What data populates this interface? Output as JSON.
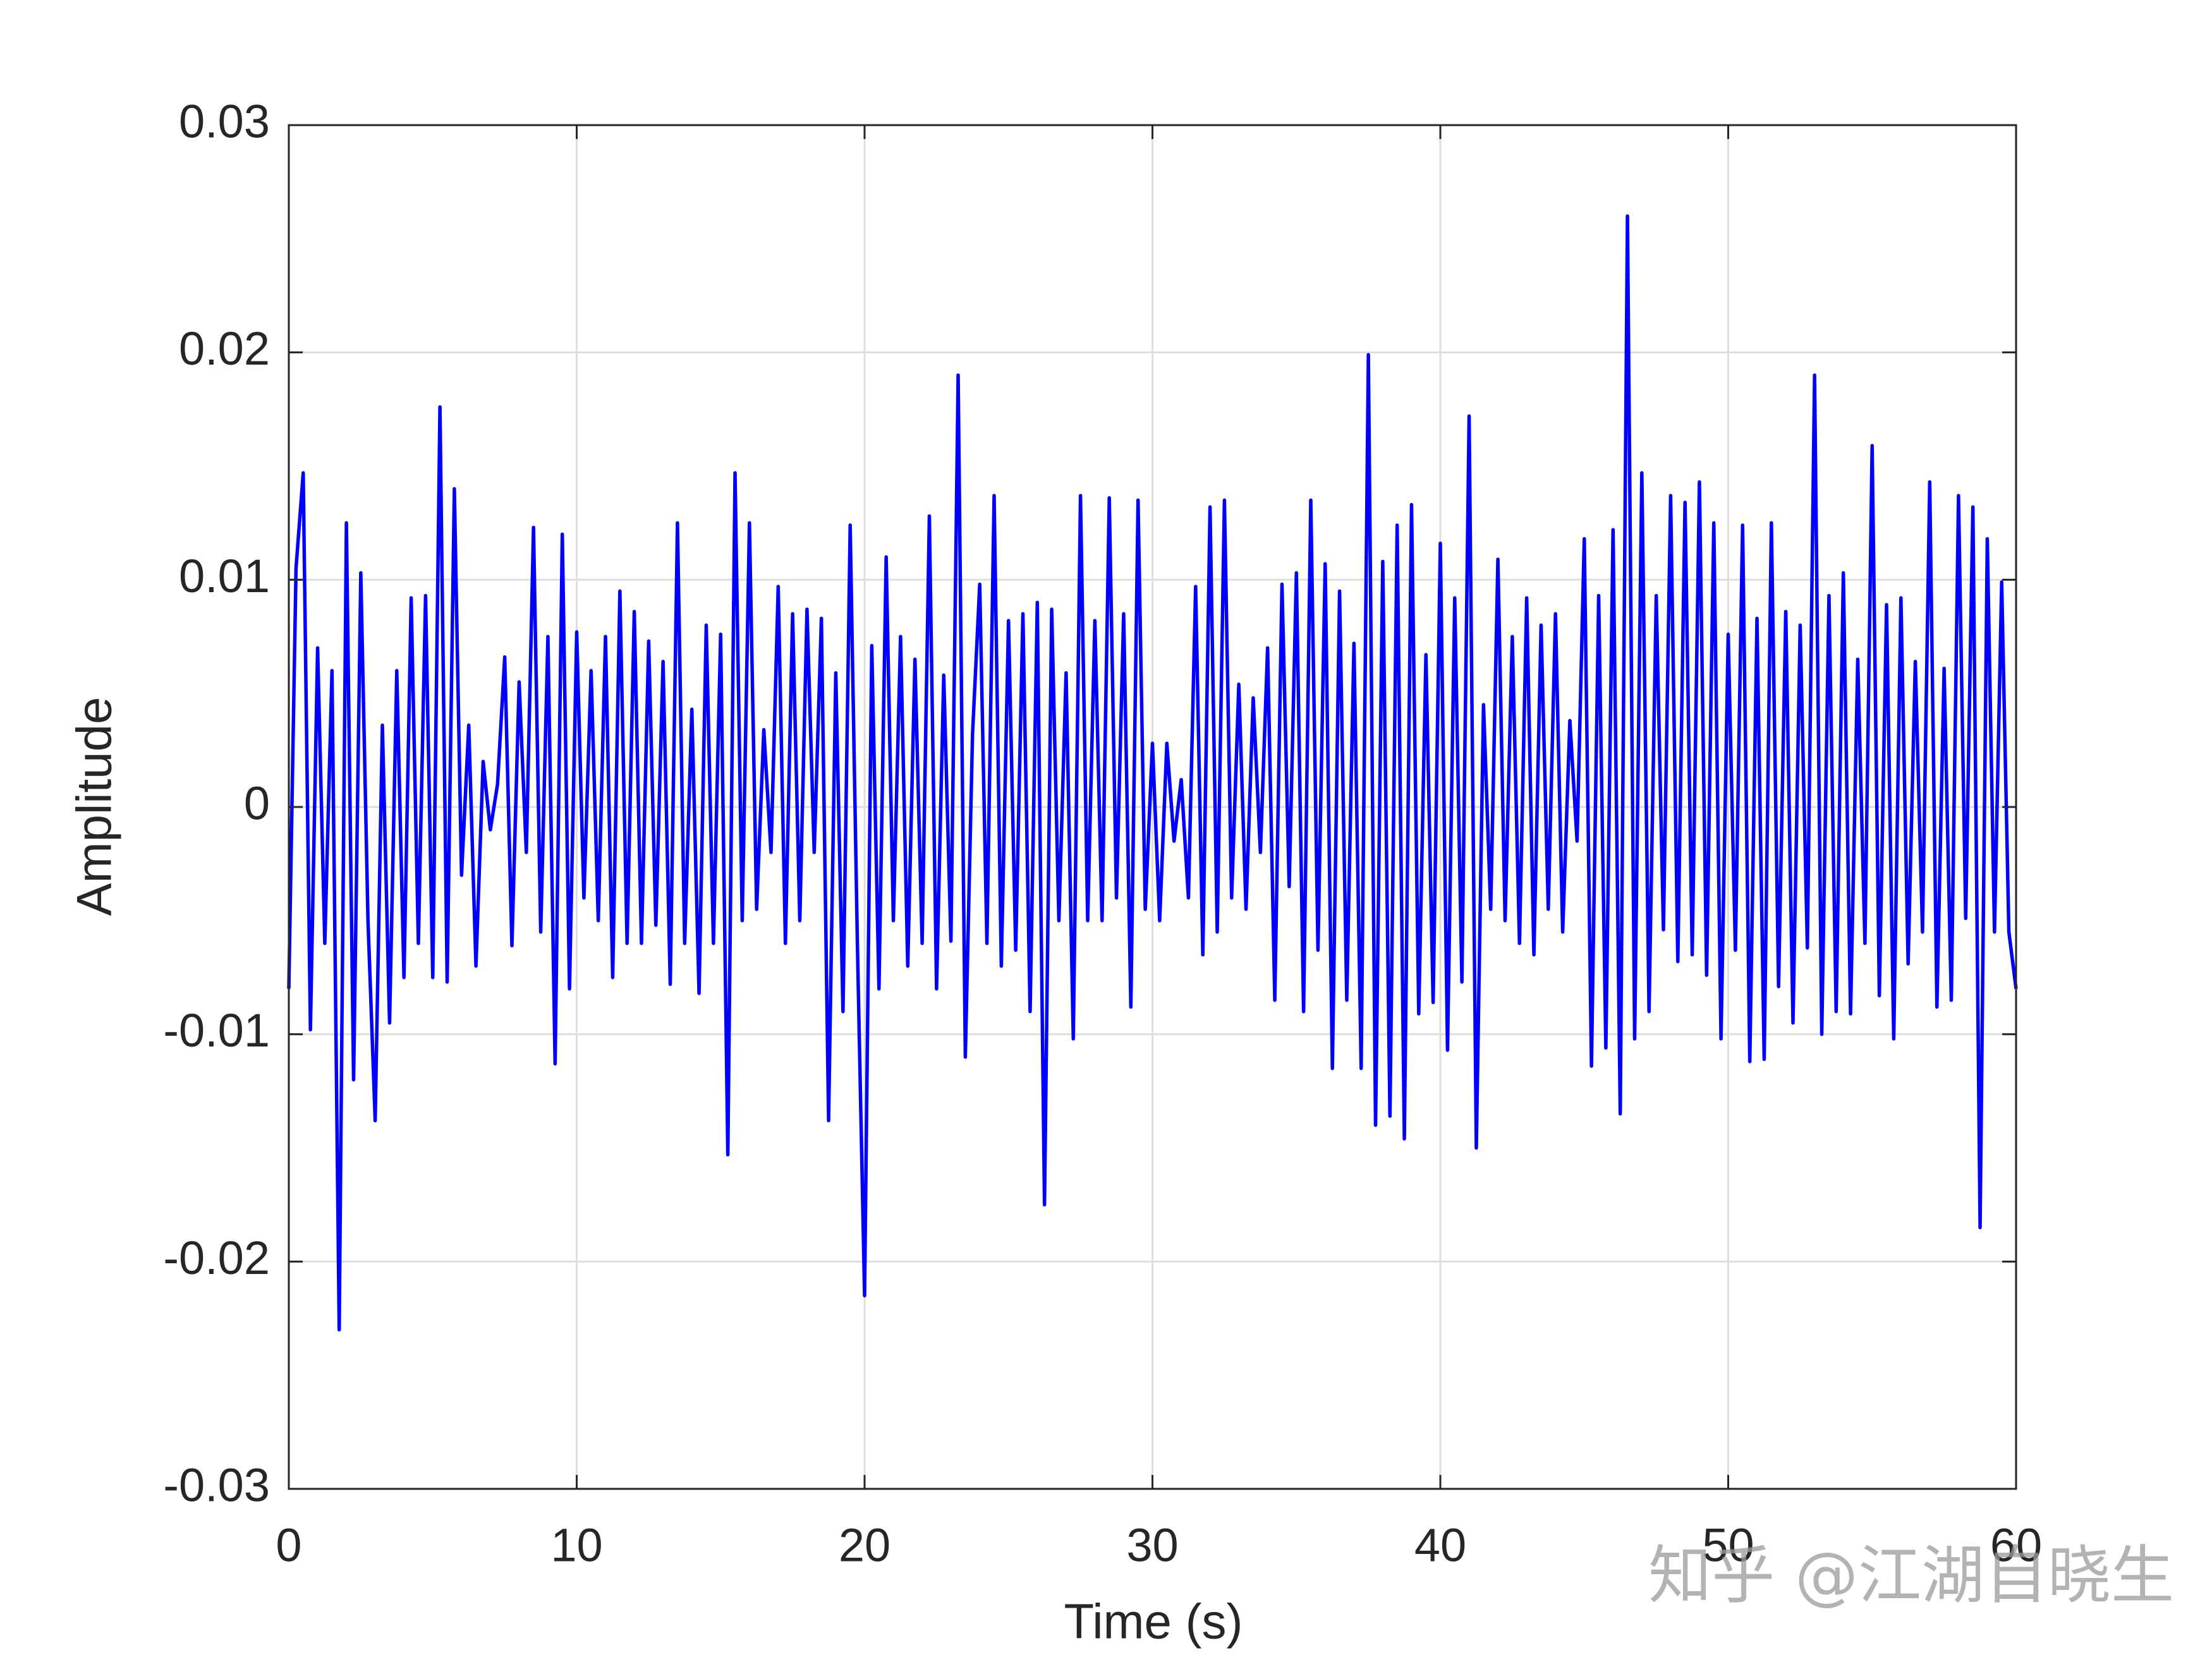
{
  "chart_data": {
    "type": "line",
    "xlabel": "Time (s)",
    "ylabel": "Amplitude",
    "watermark": "知乎 @江湖自晓生",
    "xlim": [
      0,
      60
    ],
    "ylim": [
      -0.03,
      0.03
    ],
    "xticks": [
      0,
      10,
      20,
      30,
      40,
      50,
      60
    ],
    "yticks": [
      -0.03,
      -0.02,
      -0.01,
      0,
      0.01,
      0.02,
      0.03
    ],
    "grid": true,
    "x": [
      0,
      0.25,
      0.5,
      0.75,
      1,
      1.25,
      1.5,
      1.75,
      2,
      2.25,
      2.5,
      2.75,
      3,
      3.25,
      3.5,
      3.75,
      4,
      4.25,
      4.5,
      4.75,
      5,
      5.25,
      5.5,
      5.75,
      6,
      6.25,
      6.5,
      6.75,
      7,
      7.25,
      7.5,
      7.75,
      8,
      8.25,
      8.5,
      8.75,
      9,
      9.25,
      9.5,
      9.75,
      10,
      10.25,
      10.5,
      10.75,
      11,
      11.25,
      11.5,
      11.75,
      12,
      12.25,
      12.5,
      12.75,
      13,
      13.25,
      13.5,
      13.75,
      14,
      14.25,
      14.5,
      14.75,
      15,
      15.25,
      15.5,
      15.75,
      16,
      16.25,
      16.5,
      16.75,
      17,
      17.25,
      17.5,
      17.75,
      18,
      18.25,
      18.5,
      18.75,
      19,
      19.25,
      19.5,
      19.75,
      20,
      20.25,
      20.5,
      20.75,
      21,
      21.25,
      21.5,
      21.75,
      22,
      22.25,
      22.5,
      22.75,
      23,
      23.25,
      23.5,
      23.75,
      24,
      24.25,
      24.5,
      24.75,
      25,
      25.25,
      25.5,
      25.75,
      26,
      26.25,
      26.5,
      26.75,
      27,
      27.25,
      27.5,
      27.75,
      28,
      28.25,
      28.5,
      28.75,
      29,
      29.25,
      29.5,
      29.75,
      30,
      30.25,
      30.5,
      30.75,
      31,
      31.25,
      31.5,
      31.75,
      32,
      32.25,
      32.5,
      32.75,
      33,
      33.25,
      33.5,
      33.75,
      34,
      34.25,
      34.5,
      34.75,
      35,
      35.25,
      35.5,
      35.75,
      36,
      36.25,
      36.5,
      36.75,
      37,
      37.25,
      37.5,
      37.75,
      38,
      38.25,
      38.5,
      38.75,
      39,
      39.25,
      39.5,
      39.75,
      40,
      40.25,
      40.5,
      40.75,
      41,
      41.25,
      41.5,
      41.75,
      42,
      42.25,
      42.5,
      42.75,
      43,
      43.25,
      43.5,
      43.75,
      44,
      44.25,
      44.5,
      44.75,
      45,
      45.25,
      45.5,
      45.75,
      46,
      46.25,
      46.5,
      46.75,
      47,
      47.25,
      47.5,
      47.75,
      48,
      48.25,
      48.5,
      48.75,
      49,
      49.25,
      49.5,
      49.75,
      50,
      50.25,
      50.5,
      50.75,
      51,
      51.25,
      51.5,
      51.75,
      52,
      52.25,
      52.5,
      52.75,
      53,
      53.25,
      53.5,
      53.75,
      54,
      54.25,
      54.5,
      54.75,
      55,
      55.25,
      55.5,
      55.75,
      56,
      56.25,
      56.5,
      56.75,
      57,
      57.25,
      57.5,
      57.75,
      58,
      58.25,
      58.5,
      58.75,
      59,
      59.25,
      59.5,
      59.75,
      60
    ],
    "series": [
      {
        "color": "#0000ff",
        "values": [
          -0.008,
          0.0105,
          0.0147,
          -0.0098,
          0.007,
          -0.006,
          0.006,
          -0.023,
          0.0125,
          -0.012,
          0.0103,
          -0.005,
          -0.0138,
          0.0036,
          -0.0095,
          0.006,
          -0.0075,
          0.0092,
          -0.006,
          0.0093,
          -0.0075,
          0.0176,
          -0.0077,
          0.014,
          -0.003,
          0.0036,
          -0.007,
          0.002,
          -0.001,
          0.001,
          0.0066,
          -0.0061,
          0.0055,
          -0.002,
          0.0123,
          -0.0055,
          0.0075,
          -0.0113,
          0.012,
          -0.008,
          0.0077,
          -0.004,
          0.006,
          -0.005,
          0.0075,
          -0.0075,
          0.0095,
          -0.006,
          0.0086,
          -0.006,
          0.0073,
          -0.0052,
          0.0064,
          -0.0078,
          0.0125,
          -0.006,
          0.0043,
          -0.0082,
          0.008,
          -0.006,
          0.0076,
          -0.0153,
          0.0147,
          -0.005,
          0.0125,
          -0.0045,
          0.0034,
          -0.002,
          0.0097,
          -0.006,
          0.0085,
          -0.005,
          0.0087,
          -0.002,
          0.0083,
          -0.0138,
          0.0059,
          -0.009,
          0.0124,
          -0.006,
          -0.0215,
          0.0071,
          -0.008,
          0.011,
          -0.005,
          0.0075,
          -0.007,
          0.0065,
          -0.006,
          0.0128,
          -0.008,
          0.0058,
          -0.0059,
          0.019,
          -0.011,
          0.0032,
          0.0098,
          -0.006,
          0.0137,
          -0.007,
          0.0082,
          -0.0063,
          0.0085,
          -0.009,
          0.009,
          -0.0175,
          0.0087,
          -0.005,
          0.0059,
          -0.0102,
          0.0137,
          -0.005,
          0.0082,
          -0.005,
          0.0136,
          -0.004,
          0.0085,
          -0.0088,
          0.0135,
          -0.0045,
          0.0028,
          -0.005,
          0.0028,
          -0.0015,
          0.0012,
          -0.004,
          0.0097,
          -0.0065,
          0.0132,
          -0.0055,
          0.0135,
          -0.004,
          0.0054,
          -0.0045,
          0.0048,
          -0.002,
          0.007,
          -0.0085,
          0.0098,
          -0.0035,
          0.0103,
          -0.009,
          0.0135,
          -0.0063,
          0.0107,
          -0.0115,
          0.0095,
          -0.0085,
          0.0072,
          -0.0115,
          0.0199,
          -0.014,
          0.0108,
          -0.0136,
          0.0124,
          -0.0146,
          0.0133,
          -0.0091,
          0.0067,
          -0.0086,
          0.0116,
          -0.0107,
          0.0092,
          -0.0077,
          0.0172,
          -0.015,
          0.0045,
          -0.0045,
          0.0109,
          -0.005,
          0.0075,
          -0.006,
          0.0092,
          -0.0065,
          0.008,
          -0.0045,
          0.0085,
          -0.0055,
          0.0038,
          -0.0015,
          0.0118,
          -0.0114,
          0.0093,
          -0.0106,
          0.0122,
          -0.0135,
          0.026,
          -0.0102,
          0.0147,
          -0.009,
          0.0093,
          -0.0054,
          0.0137,
          -0.0068,
          0.0134,
          -0.0065,
          0.0143,
          -0.0074,
          0.0125,
          -0.0102,
          0.0076,
          -0.0063,
          0.0124,
          -0.0112,
          0.0083,
          -0.0111,
          0.0125,
          -0.0079,
          0.0086,
          -0.0095,
          0.008,
          -0.0062,
          0.019,
          -0.01,
          0.0093,
          -0.009,
          0.0103,
          -0.0091,
          0.0065,
          -0.006,
          0.0159,
          -0.0083,
          0.0089,
          -0.0102,
          0.0092,
          -0.0069,
          0.0064,
          -0.0055,
          0.0143,
          -0.0088,
          0.0061,
          -0.0085,
          0.0137,
          -0.0049,
          0.0132,
          -0.0185,
          0.0118,
          -0.0055,
          0.0099,
          -0.0055,
          -0.008
        ]
      }
    ]
  }
}
